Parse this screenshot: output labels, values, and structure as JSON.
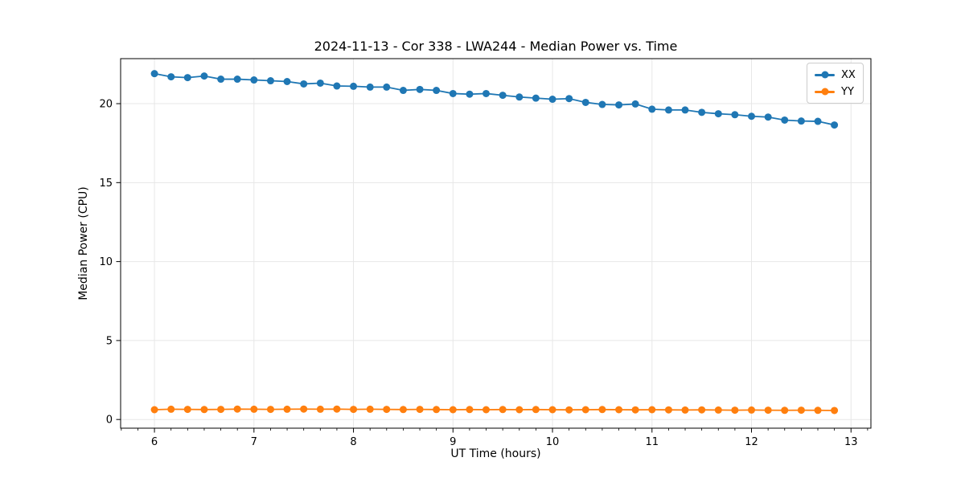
{
  "chart_data": {
    "type": "line",
    "title": "2024-11-13 - Cor 338 - LWA244 - Median Power vs. Time",
    "xlabel": "UT Time (hours)",
    "ylabel": "Median Power (CPU)",
    "xlim": [
      5.66,
      13.2
    ],
    "ylim": [
      -0.55,
      22.85
    ],
    "xticks": [
      6,
      7,
      8,
      9,
      10,
      11,
      12,
      13
    ],
    "yticks": [
      0,
      5,
      10,
      15,
      20
    ],
    "x_minor_per_hour": 6,
    "grid": true,
    "grid_color": "#e7e7e7",
    "legend_position": "upper right",
    "x": [
      6.0,
      6.167,
      6.333,
      6.5,
      6.667,
      6.833,
      7.0,
      7.167,
      7.333,
      7.5,
      7.667,
      7.833,
      8.0,
      8.167,
      8.333,
      8.5,
      8.667,
      8.833,
      9.0,
      9.167,
      9.333,
      9.5,
      9.667,
      9.833,
      10.0,
      10.167,
      10.333,
      10.5,
      10.667,
      10.833,
      11.0,
      11.167,
      11.333,
      11.5,
      11.667,
      11.833,
      12.0,
      12.167,
      12.333,
      12.5,
      12.667,
      12.833
    ],
    "series": [
      {
        "name": "XX",
        "color": "#1f77b4",
        "values": [
          21.9,
          21.7,
          21.65,
          21.75,
          21.55,
          21.55,
          21.5,
          21.45,
          21.4,
          21.25,
          21.3,
          21.12,
          21.1,
          21.05,
          21.05,
          20.84,
          20.9,
          20.84,
          20.64,
          20.6,
          20.64,
          20.53,
          20.42,
          20.35,
          20.28,
          20.32,
          20.08,
          19.95,
          19.92,
          19.98,
          19.65,
          19.6,
          19.6,
          19.45,
          19.36,
          19.3,
          19.2,
          19.15,
          18.96,
          18.9,
          18.88,
          18.65
        ]
      },
      {
        "name": "YY",
        "color": "#ff7f0e",
        "values": [
          0.62,
          0.65,
          0.64,
          0.63,
          0.64,
          0.66,
          0.65,
          0.64,
          0.65,
          0.66,
          0.65,
          0.66,
          0.64,
          0.65,
          0.64,
          0.63,
          0.64,
          0.63,
          0.62,
          0.63,
          0.62,
          0.63,
          0.62,
          0.63,
          0.62,
          0.61,
          0.62,
          0.63,
          0.62,
          0.61,
          0.62,
          0.61,
          0.6,
          0.61,
          0.6,
          0.59,
          0.6,
          0.59,
          0.58,
          0.59,
          0.58,
          0.57
        ]
      }
    ]
  }
}
